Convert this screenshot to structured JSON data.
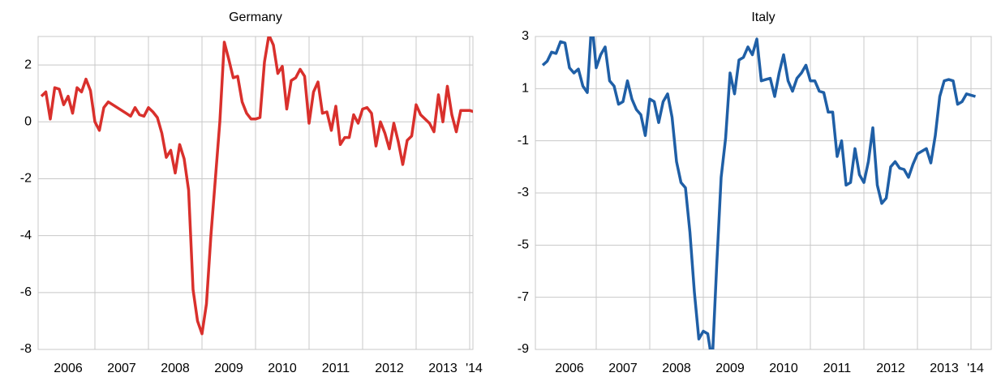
{
  "chart_data": [
    {
      "type": "line",
      "title": "Germany",
      "color": "#d9302c",
      "ylim": [
        -8,
        3
      ],
      "yticks": [
        -8,
        -6,
        -4,
        -2,
        0,
        2
      ],
      "grid": true,
      "categories": [
        null,
        null,
        null,
        null,
        null,
        null,
        "2006",
        null,
        null,
        null,
        null,
        null,
        null,
        null,
        null,
        null,
        null,
        null,
        "2007",
        null,
        null,
        null,
        null,
        null,
        null,
        null,
        null,
        null,
        null,
        null,
        "2008",
        null,
        null,
        null,
        null,
        null,
        null,
        null,
        null,
        null,
        null,
        null,
        "2009",
        null,
        null,
        null,
        null,
        null,
        null,
        null,
        null,
        null,
        null,
        null,
        "2010",
        null,
        null,
        null,
        null,
        null,
        null,
        null,
        null,
        null,
        null,
        null,
        "2011",
        null,
        null,
        null,
        null,
        null,
        null,
        null,
        null,
        null,
        null,
        null,
        "2012",
        null,
        null,
        null,
        null,
        null,
        null,
        null,
        null,
        null,
        null,
        null,
        "2013",
        null,
        null,
        null,
        null,
        null,
        null,
        "'14"
      ],
      "values": [
        0.9,
        1.05,
        0.1,
        1.2,
        1.15,
        0.6,
        0.9,
        0.3,
        1.2,
        1.05,
        1.5,
        1.1,
        0.0,
        -0.3,
        0.5,
        0.7,
        0.6,
        0.5,
        0.4,
        0.3,
        0.2,
        0.5,
        0.25,
        0.2,
        0.5,
        0.35,
        0.15,
        -0.4,
        -1.25,
        -1.0,
        -1.8,
        -0.8,
        -1.3,
        -2.4,
        -5.9,
        -7.0,
        -7.45,
        -6.4,
        -4.0,
        -2.0,
        0.0,
        2.8,
        2.2,
        1.55,
        1.6,
        0.7,
        0.3,
        0.1,
        0.1,
        0.15,
        2.1,
        3.05,
        2.7,
        1.7,
        1.95,
        0.45,
        1.45,
        1.55,
        1.85,
        1.6,
        -0.05,
        1.05,
        1.4,
        0.3,
        0.35,
        -0.3,
        0.55,
        -0.8,
        -0.55,
        -0.55,
        0.25,
        -0.05,
        0.45,
        0.5,
        0.3,
        -0.85,
        0.0,
        -0.4,
        -0.95,
        -0.05,
        -0.7,
        -1.5,
        -0.65,
        -0.5,
        0.6,
        0.25,
        0.1,
        -0.05,
        -0.35,
        0.95,
        0.0,
        1.25,
        0.25,
        -0.35,
        0.4,
        0.4,
        0.4,
        0.35
      ]
    },
    {
      "type": "line",
      "title": "Italy",
      "color": "#1f5fa6",
      "ylim": [
        -9,
        3
      ],
      "yticks": [
        -9,
        -7,
        -5,
        -3,
        -1,
        1,
        3
      ],
      "grid": true,
      "categories": [
        null,
        null,
        null,
        null,
        null,
        null,
        "2006",
        null,
        null,
        null,
        null,
        null,
        null,
        null,
        null,
        null,
        null,
        null,
        "2007",
        null,
        null,
        null,
        null,
        null,
        null,
        null,
        null,
        null,
        null,
        null,
        "2008",
        null,
        null,
        null,
        null,
        null,
        null,
        null,
        null,
        null,
        null,
        null,
        "2009",
        null,
        null,
        null,
        null,
        null,
        null,
        null,
        null,
        null,
        null,
        null,
        "2010",
        null,
        null,
        null,
        null,
        null,
        null,
        null,
        null,
        null,
        null,
        null,
        "2011",
        null,
        null,
        null,
        null,
        null,
        null,
        null,
        null,
        null,
        null,
        null,
        "2012",
        null,
        null,
        null,
        null,
        null,
        null,
        null,
        null,
        null,
        null,
        null,
        "2013",
        null,
        null,
        null,
        null,
        null,
        null,
        "'14"
      ],
      "values": [
        1.9,
        2.05,
        2.4,
        2.35,
        2.8,
        2.75,
        1.8,
        1.6,
        1.75,
        1.1,
        0.85,
        3.6,
        1.8,
        2.3,
        2.6,
        1.3,
        1.1,
        0.4,
        0.5,
        1.3,
        0.6,
        0.2,
        0.0,
        -0.8,
        0.6,
        0.5,
        -0.3,
        0.5,
        0.8,
        -0.1,
        -1.8,
        -2.6,
        -2.8,
        -4.5,
        -6.8,
        -8.6,
        -8.3,
        -8.4,
        -9.5,
        -5.8,
        -2.4,
        -0.9,
        1.6,
        0.8,
        2.1,
        2.2,
        2.6,
        2.3,
        2.9,
        1.3,
        1.35,
        1.4,
        0.7,
        1.6,
        2.3,
        1.3,
        0.9,
        1.4,
        1.6,
        1.9,
        1.3,
        1.3,
        0.9,
        0.85,
        0.1,
        0.1,
        -1.6,
        -1.0,
        -2.7,
        -2.6,
        -1.3,
        -2.3,
        -2.6,
        -1.8,
        -0.5,
        -2.7,
        -3.4,
        -3.2,
        -2.0,
        -1.8,
        -2.05,
        -2.1,
        -2.4,
        -1.9,
        -1.5,
        -1.4,
        -1.3,
        -1.85,
        -0.8,
        0.7,
        1.3,
        1.35,
        1.3,
        0.4,
        0.5,
        0.8,
        0.75,
        0.7
      ]
    }
  ]
}
